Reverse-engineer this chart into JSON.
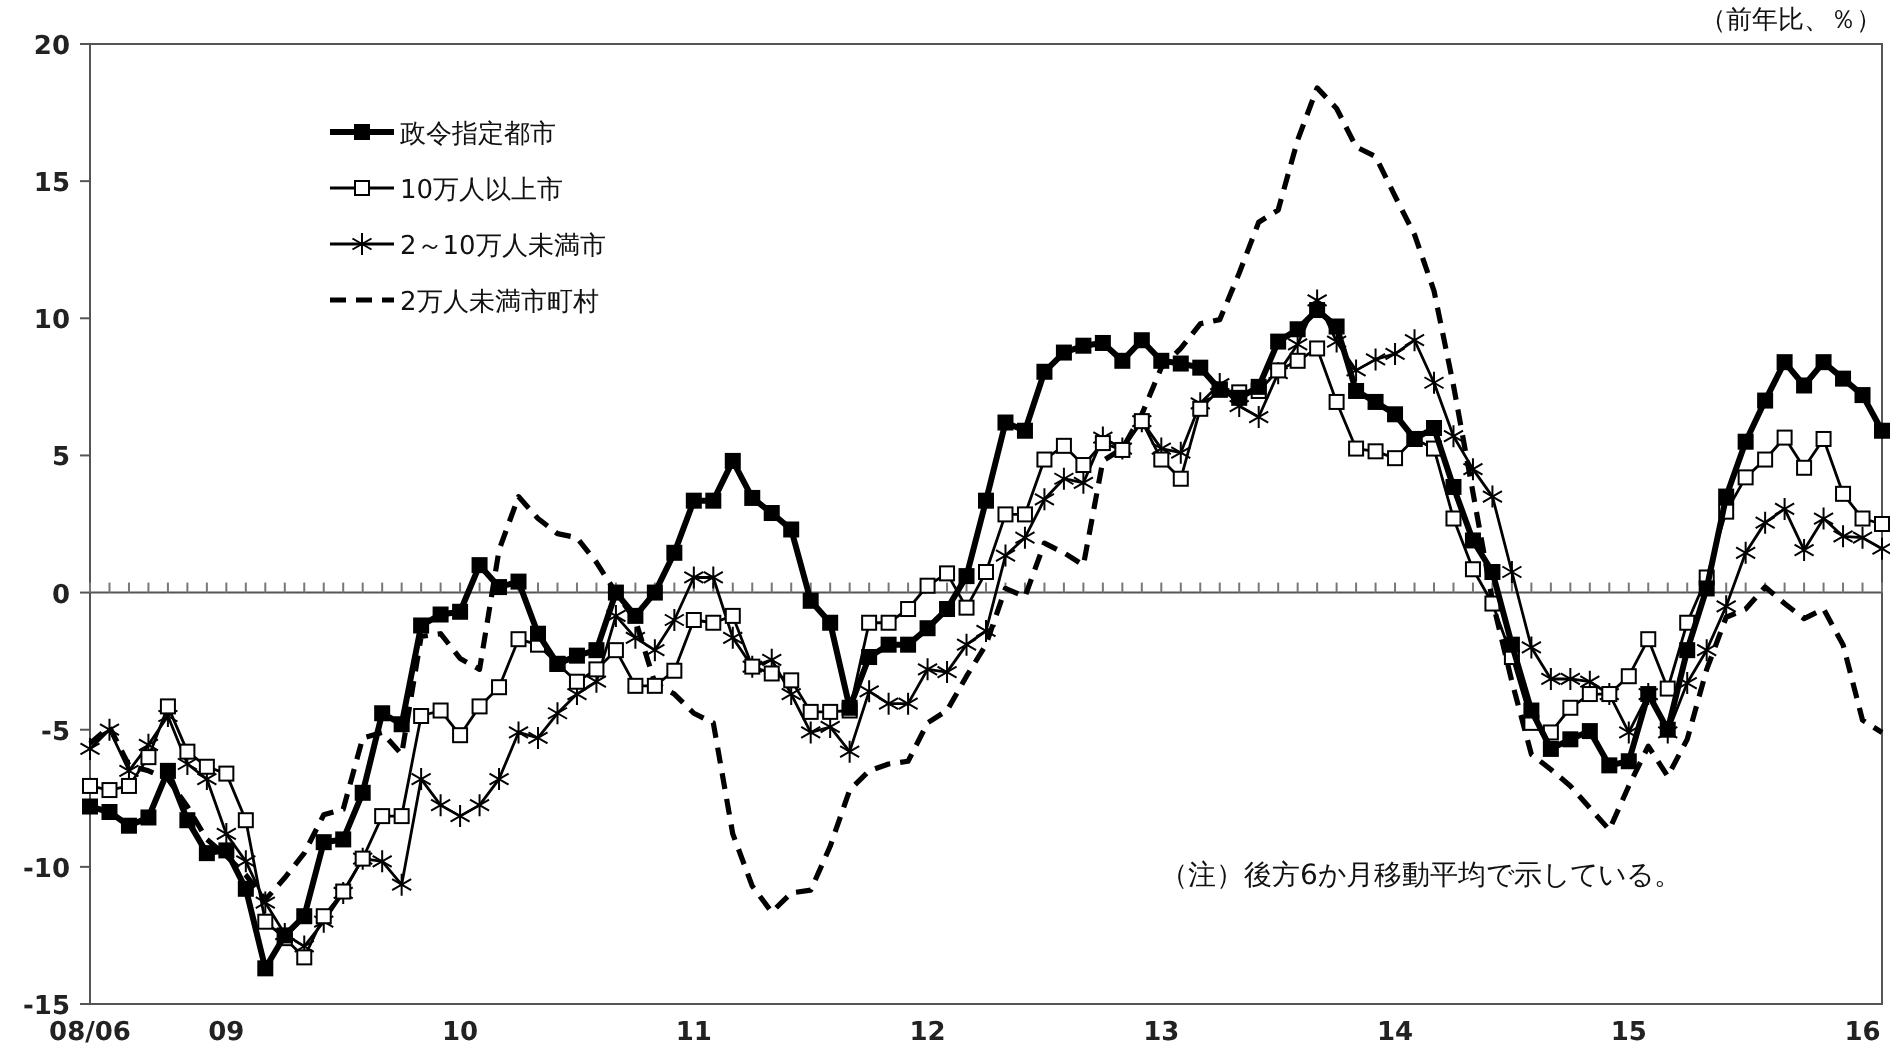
{
  "chart_data": {
    "type": "line",
    "x": [
      "2008-06",
      "2008-07",
      "2008-08",
      "2008-09",
      "2008-10",
      "2008-11",
      "2008-12",
      "2009-01",
      "2009-02",
      "2009-03",
      "2009-04",
      "2009-05",
      "2009-06",
      "2009-07",
      "2009-08",
      "2009-09",
      "2009-10",
      "2009-11",
      "2009-12",
      "2010-01",
      "2010-02",
      "2010-03",
      "2010-04",
      "2010-05",
      "2010-06",
      "2010-07",
      "2010-08",
      "2010-09",
      "2010-10",
      "2010-11",
      "2010-12",
      "2011-01",
      "2011-02",
      "2011-03",
      "2011-04",
      "2011-05",
      "2011-06",
      "2011-07",
      "2011-08",
      "2011-09",
      "2011-10",
      "2011-11",
      "2011-12",
      "2012-01",
      "2012-02",
      "2012-03",
      "2012-04",
      "2012-05",
      "2012-06",
      "2012-07",
      "2012-08",
      "2012-09",
      "2012-10",
      "2012-11",
      "2012-12",
      "2013-01",
      "2013-02",
      "2013-03",
      "2013-04",
      "2013-05",
      "2013-06",
      "2013-07",
      "2013-08",
      "2013-09",
      "2013-10",
      "2013-11",
      "2013-12",
      "2014-01",
      "2014-02",
      "2014-03",
      "2014-04",
      "2014-05",
      "2014-06",
      "2014-07",
      "2014-08",
      "2014-09",
      "2014-10",
      "2014-11",
      "2014-12",
      "2015-01",
      "2015-02",
      "2015-03",
      "2015-04",
      "2015-05",
      "2015-06",
      "2015-07",
      "2015-08",
      "2015-09",
      "2015-10",
      "2015-11",
      "2015-12",
      "2016-01",
      "2016-02"
    ],
    "series": [
      {
        "name": "政令指定都市",
        "color": "#000000",
        "marker": "square",
        "line_style": "solid",
        "values": [
          -7.8,
          -8.0,
          -8.5,
          -8.2,
          -6.5,
          -8.3,
          -9.5,
          -9.4,
          -10.8,
          -13.7,
          -12.5,
          -11.8,
          -9.1,
          -9.0,
          -7.3,
          -4.4,
          -4.8,
          -1.2,
          -0.8,
          -0.7,
          1.0,
          0.2,
          0.4,
          -1.5,
          -2.6,
          -2.3,
          -2.1,
          0.0,
          -0.85,
          0.0,
          1.45,
          3.35,
          3.35,
          4.8,
          3.45,
          2.9,
          2.3,
          -0.3,
          -1.1,
          -4.2,
          -2.35,
          -1.9,
          -1.9,
          -1.3,
          -0.6,
          0.6,
          3.35,
          6.2,
          5.9,
          8.05,
          8.75,
          9.0,
          9.1,
          8.45,
          9.2,
          8.45,
          8.35,
          8.2,
          7.4,
          7.1,
          7.5,
          9.15,
          9.6,
          10.3,
          9.7,
          7.35,
          6.95,
          6.5,
          5.6,
          6.0,
          3.85,
          1.9,
          0.75,
          -1.9,
          -4.3,
          -5.7,
          -5.35,
          -5.05,
          -6.3,
          -6.15,
          -3.7,
          -5.0,
          -2.1,
          0.15,
          3.5,
          5.5,
          7.0,
          8.4,
          7.55,
          8.4,
          7.8,
          7.2,
          5.9
        ]
      },
      {
        "name": "10万人以上市",
        "color": "#000000",
        "marker": "square",
        "line_style": "solid",
        "values": [
          -7.05,
          -7.2,
          -7.05,
          -6.0,
          -4.15,
          -5.8,
          -6.35,
          -6.6,
          -8.3,
          -12.0,
          -12.6,
          -13.3,
          -11.8,
          -10.9,
          -9.7,
          -8.15,
          -8.15,
          -4.5,
          -4.3,
          -5.2,
          -4.15,
          -3.45,
          -1.7,
          -1.9,
          -2.6,
          -3.25,
          -2.8,
          -2.1,
          -3.4,
          -3.4,
          -2.85,
          -1.0,
          -1.1,
          -0.85,
          -2.7,
          -2.95,
          -3.2,
          -4.35,
          -4.35,
          -4.3,
          -1.1,
          -1.1,
          -0.6,
          0.25,
          0.7,
          -0.55,
          0.75,
          2.85,
          2.85,
          4.85,
          5.35,
          4.65,
          5.45,
          5.2,
          6.25,
          4.85,
          4.15,
          6.7,
          7.4,
          7.3,
          7.35,
          8.1,
          8.45,
          8.9,
          6.95,
          5.25,
          5.15,
          4.9,
          5.6,
          5.25,
          2.7,
          0.85,
          -0.4,
          -2.35,
          -4.75,
          -5.1,
          -4.2,
          -3.7,
          -3.7,
          -3.05,
          -1.7,
          -3.5,
          -1.1,
          0.55,
          2.95,
          4.2,
          4.85,
          5.65,
          4.55,
          5.6,
          3.6,
          2.7,
          2.5
        ]
      },
      {
        "name": "2～10万人未満市",
        "color": "#000000",
        "marker": "cross",
        "line_style": "solid",
        "values": [
          -5.7,
          -5.0,
          -6.5,
          -5.55,
          -4.5,
          -6.25,
          -6.8,
          -8.8,
          -9.8,
          -11.3,
          -12.45,
          -12.9,
          -12.0,
          -10.95,
          -9.7,
          -9.8,
          -10.65,
          -6.8,
          -7.75,
          -8.15,
          -7.75,
          -6.8,
          -5.1,
          -5.3,
          -4.4,
          -3.7,
          -3.25,
          -0.85,
          -1.65,
          -2.1,
          -1.0,
          0.55,
          0.55,
          -1.65,
          -2.7,
          -2.45,
          -3.7,
          -5.1,
          -4.9,
          -5.8,
          -3.6,
          -4.05,
          -4.05,
          -2.8,
          -2.9,
          -1.9,
          -1.4,
          1.35,
          2.0,
          3.4,
          4.15,
          4.0,
          5.65,
          5.25,
          6.25,
          5.25,
          5.1,
          6.9,
          7.6,
          6.8,
          6.4,
          8.0,
          9.05,
          10.65,
          9.15,
          8.1,
          8.5,
          8.7,
          9.2,
          7.65,
          5.7,
          4.5,
          3.5,
          0.75,
          -2.0,
          -3.15,
          -3.15,
          -3.25,
          -3.7,
          -5.1,
          -3.7,
          -5.1,
          -3.3,
          -2.1,
          -0.5,
          1.45,
          2.55,
          3.05,
          1.55,
          2.7,
          2.05,
          2.0,
          1.6
        ]
      },
      {
        "name": "2万人未満市町村",
        "color": "#000000",
        "marker": "none",
        "line_style": "dashed",
        "values": [
          -5.5,
          -4.9,
          -6.3,
          -6.5,
          -6.8,
          -7.8,
          -9.0,
          -9.6,
          -10.3,
          -11.2,
          -10.4,
          -9.5,
          -8.1,
          -7.9,
          -5.3,
          -5.1,
          -5.9,
          -1.6,
          -1.5,
          -2.4,
          -2.8,
          1.55,
          3.5,
          2.7,
          2.15,
          2.0,
          1.1,
          0.0,
          -1.0,
          -3.3,
          -3.7,
          -4.4,
          -4.75,
          -8.8,
          -10.7,
          -11.65,
          -10.95,
          -10.85,
          -9.25,
          -7.2,
          -6.5,
          -6.25,
          -6.15,
          -4.75,
          -4.3,
          -3.05,
          -1.9,
          0.15,
          -0.15,
          1.8,
          1.45,
          1.0,
          4.8,
          5.25,
          6.5,
          8.2,
          8.9,
          9.8,
          9.95,
          11.65,
          13.5,
          13.95,
          16.5,
          18.4,
          17.65,
          16.25,
          15.9,
          14.45,
          13.05,
          11.0,
          7.55,
          3.65,
          -0.3,
          -3.25,
          -5.9,
          -6.45,
          -7.05,
          -7.85,
          -8.65,
          -7.05,
          -5.6,
          -6.7,
          -5.35,
          -2.8,
          -0.9,
          -0.6,
          0.2,
          -0.4,
          -0.95,
          -0.6,
          -1.9,
          -4.65,
          -5.1
        ]
      }
    ],
    "xlim": [
      "2008-06",
      "2016-02"
    ],
    "xticks": [
      {
        "value": "2008-06",
        "label": "08/06"
      },
      {
        "value": "2009-01",
        "label": "09"
      },
      {
        "value": "2010-01",
        "label": "10"
      },
      {
        "value": "2011-01",
        "label": "11"
      },
      {
        "value": "2012-01",
        "label": "12"
      },
      {
        "value": "2013-01",
        "label": "13"
      },
      {
        "value": "2014-01",
        "label": "14"
      },
      {
        "value": "2015-01",
        "label": "15"
      },
      {
        "value": "2016-01",
        "label": "16"
      }
    ],
    "ylim": [
      -15,
      20
    ],
    "yticks": [
      -15,
      -10,
      -5,
      0,
      5,
      10,
      15,
      20
    ],
    "legend": "top left",
    "grid": false,
    "ref_lines": [
      {
        "axis": "y",
        "value": 0,
        "color": "#555555"
      }
    ],
    "annotations": [
      "（前年比、％）",
      "（注）後方6か月移動平均で示している。"
    ]
  }
}
